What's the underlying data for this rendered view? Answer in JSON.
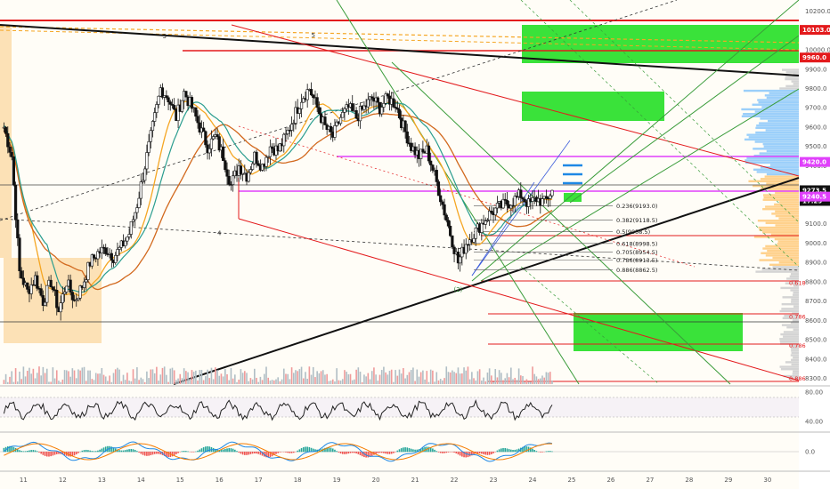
{
  "chart_data": {
    "type": "candlestick",
    "price_axis": {
      "ticks": [
        "10200.0",
        "10000.0",
        "9900.0",
        "9800.0",
        "9700.0",
        "9600.0",
        "9500.0",
        "9400.0",
        "9100.0",
        "9000.0",
        "8900.0",
        "8800.0",
        "8700.0",
        "8600.0",
        "8500.0",
        "8400.0",
        "8300.0"
      ],
      "range": [
        8280,
        10230
      ]
    },
    "time_axis": {
      "ticks": [
        "11",
        "12",
        "13",
        "14",
        "15",
        "16",
        "17",
        "18",
        "19",
        "20",
        "21",
        "22",
        "23",
        "24",
        "25",
        "26",
        "27",
        "28",
        "29",
        "30"
      ],
      "range": [
        10.4,
        30.8
      ]
    },
    "price_tags": {
      "top_red": {
        "label": "10103.0",
        "price": 10103,
        "color": "#e31a1c"
      },
      "red2": {
        "label": "9960.0",
        "price": 9960,
        "color": "#e31a1c"
      },
      "magenta": {
        "label": "9420.0",
        "price": 9420,
        "color": "#e040fb"
      },
      "last": {
        "label": "9273.5",
        "price": 9273.5,
        "color": "#111111"
      },
      "timer": {
        "label": "17:29",
        "color": "#111111"
      },
      "magenta2": {
        "label": "9240.5",
        "price": 9240.5,
        "color": "#e040fb"
      }
    },
    "fib_levels": [
      {
        "label": "0.236(9193.0)",
        "price": 9193.0
      },
      {
        "label": "0.382(9118.5)",
        "price": 9118.5
      },
      {
        "label": "0.5(9058.5)",
        "price": 9058.5
      },
      {
        "label": "0.618(8998.5)",
        "price": 8998.5
      },
      {
        "label": "0.705(8954.5)",
        "price": 8954.5
      },
      {
        "label": "0.786(8913.5)",
        "price": 8913.5
      },
      {
        "label": "0.886(8862.5)",
        "price": 8862.5
      }
    ],
    "right_fib_labels": [
      {
        "label": "0.618",
        "price": 8796
      },
      {
        "label": "0.786",
        "price": 8620
      },
      {
        "label": "0.786",
        "price": 8470
      },
      {
        "label": "0.886",
        "price": 8300
      }
    ],
    "wave_labels": [
      {
        "label": "3",
        "day": 14.6,
        "price": 10060
      },
      {
        "label": "5",
        "day": 18.4,
        "price": 10065
      },
      {
        "label": "4",
        "day": 16.0,
        "price": 9040
      },
      {
        "label": "(2)",
        "day": 22.1,
        "price": 8750
      }
    ],
    "close_series": [
      [
        10.5,
        9600
      ],
      [
        10.7,
        9450
      ],
      [
        10.9,
        8850
      ],
      [
        11.1,
        8750
      ],
      [
        11.3,
        8820
      ],
      [
        11.5,
        8700
      ],
      [
        11.7,
        8800
      ],
      [
        11.9,
        8650
      ],
      [
        12.1,
        8800
      ],
      [
        12.3,
        8700
      ],
      [
        12.5,
        8780
      ],
      [
        12.7,
        8900
      ],
      [
        12.9,
        8950
      ],
      [
        13.1,
        8970
      ],
      [
        13.3,
        8930
      ],
      [
        13.5,
        8980
      ],
      [
        13.7,
        9050
      ],
      [
        13.9,
        9200
      ],
      [
        14.1,
        9400
      ],
      [
        14.3,
        9600
      ],
      [
        14.5,
        9800
      ],
      [
        14.7,
        9750
      ],
      [
        14.9,
        9650
      ],
      [
        15.1,
        9780
      ],
      [
        15.3,
        9700
      ],
      [
        15.5,
        9600
      ],
      [
        15.7,
        9500
      ],
      [
        15.9,
        9550
      ],
      [
        16.1,
        9450
      ],
      [
        16.3,
        9300
      ],
      [
        16.5,
        9400
      ],
      [
        16.7,
        9350
      ],
      [
        16.9,
        9450
      ],
      [
        17.1,
        9400
      ],
      [
        17.3,
        9500
      ],
      [
        17.5,
        9480
      ],
      [
        17.7,
        9550
      ],
      [
        17.9,
        9650
      ],
      [
        18.1,
        9750
      ],
      [
        18.3,
        9800
      ],
      [
        18.5,
        9700
      ],
      [
        18.7,
        9600
      ],
      [
        18.9,
        9550
      ],
      [
        19.1,
        9650
      ],
      [
        19.3,
        9700
      ],
      [
        19.5,
        9650
      ],
      [
        19.7,
        9700
      ],
      [
        19.9,
        9750
      ],
      [
        20.1,
        9700
      ],
      [
        20.3,
        9750
      ],
      [
        20.5,
        9720
      ],
      [
        20.7,
        9600
      ],
      [
        20.9,
        9500
      ],
      [
        21.1,
        9450
      ],
      [
        21.3,
        9480
      ],
      [
        21.5,
        9350
      ],
      [
        21.7,
        9200
      ],
      [
        21.9,
        9050
      ],
      [
        22.1,
        8900
      ],
      [
        22.3,
        9000
      ],
      [
        22.5,
        9050
      ],
      [
        22.7,
        9100
      ],
      [
        22.9,
        9150
      ],
      [
        23.1,
        9180
      ],
      [
        23.3,
        9200
      ],
      [
        23.5,
        9220
      ],
      [
        23.7,
        9250
      ],
      [
        23.9,
        9200
      ],
      [
        24.1,
        9230
      ],
      [
        24.3,
        9210
      ],
      [
        24.5,
        9273
      ]
    ],
    "rsi_axis": {
      "ticks": [
        "80.00",
        "40.00"
      ]
    },
    "macd_axis": {
      "ticks": [
        "0.0"
      ]
    }
  }
}
